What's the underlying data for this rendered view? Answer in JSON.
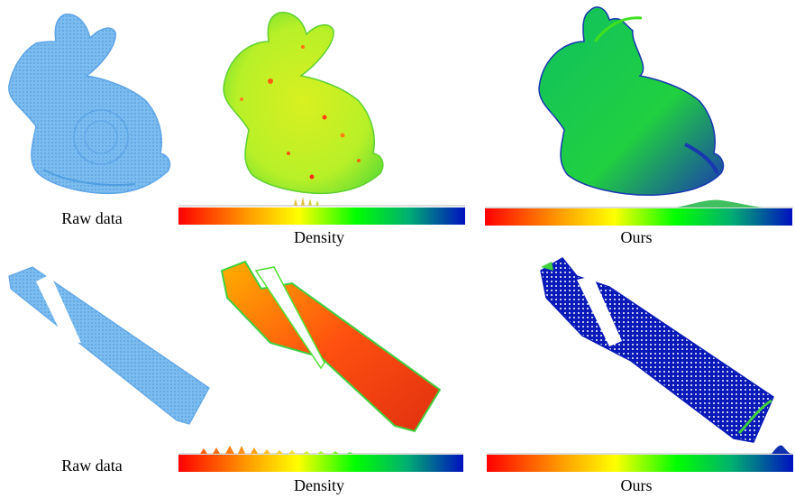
{
  "rows": [
    {
      "raw_caption": "Raw data",
      "density_caption": "Density",
      "ours_caption": "Ours"
    },
    {
      "raw_caption": "Raw data",
      "density_caption": "Density",
      "ours_caption": "Ours"
    }
  ],
  "colors": {
    "raw_points": "#6aaee8",
    "ramp": [
      "#ff0000",
      "#ff8000",
      "#ffff00",
      "#00ff00",
      "#00b060",
      "#0000c0"
    ]
  }
}
